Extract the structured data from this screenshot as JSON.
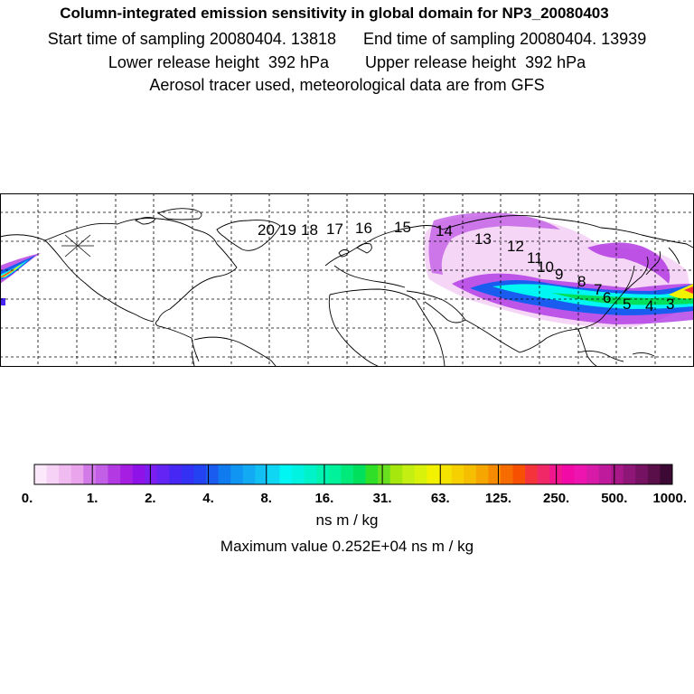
{
  "header": {
    "title": "Column-integrated emission sensitivity in global domain for NP3_20080403",
    "sampling": "Start time of sampling 20080404. 13818      End time of sampling 20080404. 13939",
    "release": "Lower release height  392 hPa        Upper release height  392 hPa",
    "note": "Aerosol tracer used, meteorological data are from GFS"
  },
  "map": {
    "projection": "global lat-lon",
    "grid": true,
    "day_labels": [
      "20",
      "19",
      "18",
      "17",
      "16",
      "15",
      "14",
      "13",
      "12",
      "11",
      "10",
      "9",
      "8",
      "7",
      "6",
      "5",
      "4",
      "3"
    ]
  },
  "colorbar": {
    "tick_labels": [
      "0.",
      "1.",
      "2.",
      "4.",
      "8.",
      "16.",
      "31.",
      "63.",
      "125.",
      "250.",
      "500.",
      "1000."
    ],
    "colors": [
      "#fbe8fb",
      "#f6d2f6",
      "#f0bbf0",
      "#eaa4ec",
      "#d27ae8",
      "#c35ee6",
      "#b33ae2",
      "#a51ee2",
      "#8f13e8",
      "#7a1ff0",
      "#6424f3",
      "#4727f4",
      "#3331f4",
      "#2342f2",
      "#1a5cf0",
      "#107bee",
      "#1095f2",
      "#12aaf2",
      "#13c0f4",
      "#0fd6f2",
      "#00f6f2",
      "#00f2e0",
      "#00f2c8",
      "#00f2b0",
      "#00f29a",
      "#00ea7c",
      "#00e05c",
      "#30e028",
      "#68e020",
      "#a6e80e",
      "#c3ef12",
      "#d8f20c",
      "#f2f200",
      "#f4e400",
      "#f6d000",
      "#f6be00",
      "#f6a600",
      "#f68a00",
      "#f66c00",
      "#f65000",
      "#f4343a",
      "#f02868",
      "#f0168e",
      "#f20aa6",
      "#ee14b0",
      "#d81aa8",
      "#c01a9c",
      "#a81888",
      "#8e1676",
      "#761262",
      "#5a0e4a",
      "#3c0834"
    ],
    "unit": "ns m / kg",
    "max_text": "Maximum value  0.252E+04 ns m / kg"
  }
}
